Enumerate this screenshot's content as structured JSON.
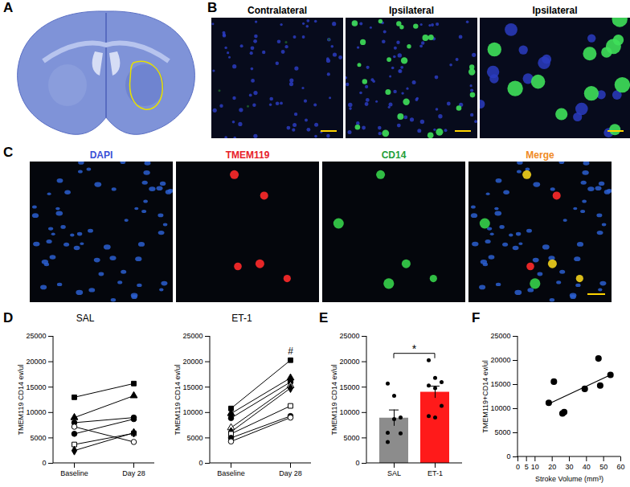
{
  "panel_labels": [
    "A",
    "B",
    "C",
    "D",
    "E",
    "F"
  ],
  "panel_b": {
    "captions": [
      "Contralateral",
      "Ipsilateral",
      "Ipsilateral"
    ]
  },
  "panel_c": {
    "channels": [
      {
        "name": "DAPI",
        "color": "#3b4fd6"
      },
      {
        "name": "TMEM119",
        "color": "#e8202a"
      },
      {
        "name": "CD14",
        "color": "#1f9e3a"
      },
      {
        "name": "Merge",
        "color": "#f08a24"
      }
    ]
  },
  "chart_data": [
    {
      "type": "line",
      "title": "SAL",
      "categories": [
        "Baseline",
        "Day 28"
      ],
      "ylabel": "TMEM119 CD14 ev/ul",
      "ylim": [
        0,
        25000
      ],
      "yticks": [
        0,
        5000,
        10000,
        15000,
        20000,
        25000
      ],
      "color": "#000000",
      "series": [
        {
          "marker": "square",
          "values": [
            13000,
            15700
          ]
        },
        {
          "marker": "triangle",
          "values": [
            9000,
            13300
          ]
        },
        {
          "marker": "circle",
          "values": [
            8000,
            9000
          ]
        },
        {
          "marker": "circle-open",
          "values": [
            7200,
            4200
          ]
        },
        {
          "marker": "circle",
          "values": [
            5800,
            8700
          ]
        },
        {
          "marker": "square-open",
          "values": [
            3700,
            5900
          ]
        },
        {
          "marker": "diamond",
          "values": [
            2500,
            6000
          ]
        }
      ]
    },
    {
      "type": "line",
      "title": "ET-1",
      "categories": [
        "Baseline",
        "Day 28"
      ],
      "ylabel": "TMEM119 CD14 ev/ul",
      "ylim": [
        0,
        25000
      ],
      "yticks": [
        0,
        5000,
        10000,
        15000,
        20000,
        25000
      ],
      "color": "#000000",
      "annotations": [
        {
          "text": "#",
          "x": "Day 28"
        }
      ],
      "series": [
        {
          "marker": "square",
          "values": [
            10800,
            20300
          ]
        },
        {
          "marker": "triangle",
          "values": [
            9800,
            16800
          ]
        },
        {
          "marker": "circle",
          "values": [
            8900,
            16000
          ]
        },
        {
          "marker": "triangle-open",
          "values": [
            7000,
            15300
          ]
        },
        {
          "marker": "diamond",
          "values": [
            6200,
            14800
          ]
        },
        {
          "marker": "square-open",
          "values": [
            5800,
            11300
          ]
        },
        {
          "marker": "circle",
          "values": [
            5000,
            9300
          ]
        },
        {
          "marker": "circle-open",
          "values": [
            4300,
            9000
          ]
        }
      ]
    },
    {
      "type": "bar",
      "categories": [
        "SAL",
        "ET-1"
      ],
      "values": [
        8900,
        14000
      ],
      "errors": [
        1600,
        1200
      ],
      "colors": [
        "#8c8c8c",
        "#ff1a1a"
      ],
      "points": [
        [
          15700,
          13300,
          9000,
          4200,
          8700,
          5900,
          6000
        ],
        [
          20300,
          16800,
          16000,
          15300,
          14800,
          11300,
          9300,
          9000
        ]
      ],
      "ylabel": "TMEM119 CD14 ev/ul",
      "ylim": [
        0,
        25000
      ],
      "yticks": [
        0,
        5000,
        10000,
        15000,
        20000,
        25000
      ],
      "annotations": [
        {
          "text": "*"
        }
      ]
    },
    {
      "type": "scatter",
      "xlabel": "Stroke Volume (mm³)",
      "ylabel": "TMEM119+CD14 ev/ul",
      "xlim": [
        0,
        60
      ],
      "xticks": [
        0,
        5,
        10,
        20,
        30,
        40,
        50,
        60
      ],
      "ylim": [
        0,
        25000
      ],
      "yticks": [
        0,
        5000,
        10000,
        15000,
        20000,
        25000
      ],
      "color": "#000000",
      "series": [
        {
          "type": "scatter",
          "marker": "circle",
          "x": [
            18,
            21,
            26,
            27,
            39,
            47,
            48,
            54
          ],
          "values": [
            11200,
            15600,
            9000,
            9300,
            14100,
            20400,
            14800,
            17000
          ]
        },
        {
          "type": "line",
          "x": [
            18,
            54
          ],
          "values": [
            11000,
            17000
          ]
        }
      ]
    }
  ]
}
